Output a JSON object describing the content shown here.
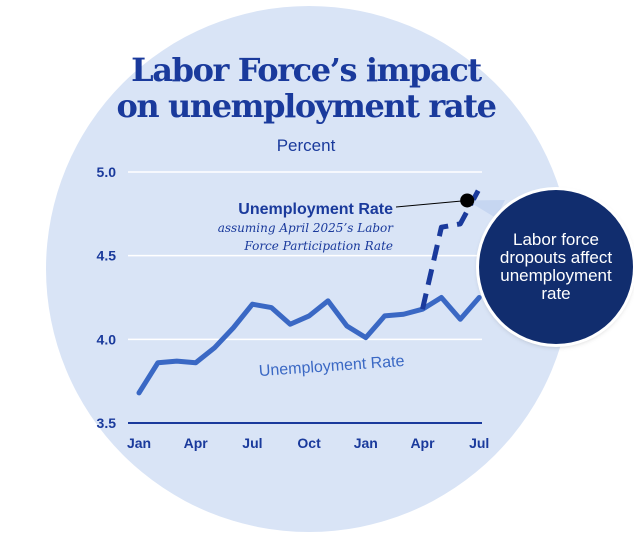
{
  "title_lines": [
    "Labor Force’s impact",
    "on unemployment rate"
  ],
  "callout_text": "Labor force\ndropouts affect\nunemployment\nrate",
  "colors": {
    "navy": "#1a3a9c",
    "line": "#3a68c4",
    "callout_bg": "#112d6e",
    "background_circle": "#d9e4f6"
  },
  "chart_data": {
    "type": "line",
    "title": "Labor Force’s impact on unemployment rate",
    "ylabel": "Percent",
    "xlabel": "",
    "ylim": [
      3.5,
      5.0
    ],
    "y_ticks": [
      "5.0",
      "4.5",
      "4.0",
      "3.5"
    ],
    "x_tick_labels": [
      "Jan",
      "Apr",
      "Jul",
      "Oct",
      "Jan",
      "Apr",
      "Jul"
    ],
    "grid": true,
    "series": [
      {
        "name": "Unemployment Rate",
        "style": "solid",
        "x": [
          "Jan 2024",
          "Feb 2024",
          "Mar 2024",
          "Apr 2024",
          "May 2024",
          "Jun 2024",
          "Jul 2024",
          "Aug 2024",
          "Sep 2024",
          "Oct 2024",
          "Nov 2024",
          "Dec 2024",
          "Jan 2025",
          "Feb 2025",
          "Mar 2025",
          "Apr 2025",
          "May 2025",
          "Jun 2025",
          "Jul 2025"
        ],
        "values": [
          3.68,
          3.86,
          3.87,
          3.86,
          3.95,
          4.07,
          4.21,
          4.19,
          4.09,
          4.14,
          4.23,
          4.08,
          4.01,
          4.14,
          4.15,
          4.18,
          4.25,
          4.12,
          4.25
        ]
      },
      {
        "name": "Unemployment Rate",
        "label_note": "assuming April 2025’s Labor Force Participation Rate",
        "style": "dashed",
        "x": [
          "Apr 2025",
          "May 2025",
          "Jun 2025",
          "Jul 2025"
        ],
        "values": [
          4.18,
          4.67,
          4.69,
          4.9
        ]
      }
    ],
    "annotations": [
      {
        "text": "Unemployment Rate",
        "series": 0
      },
      {
        "text": "Unemployment Rate",
        "subtitle": "assuming April 2025’s Labor Force Participation Rate",
        "series": 1
      }
    ]
  }
}
